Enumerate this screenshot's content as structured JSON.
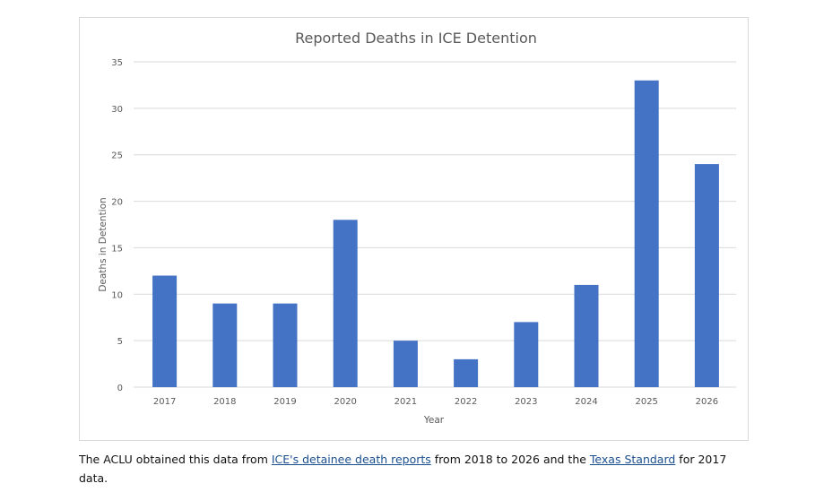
{
  "chart_data": {
    "type": "bar",
    "title": "Reported Deaths in ICE Detention",
    "xlabel": "Year",
    "ylabel": "Deaths in Detention",
    "categories": [
      "2017",
      "2018",
      "2019",
      "2020",
      "2021",
      "2022",
      "2023",
      "2024",
      "2025",
      "2026"
    ],
    "values": [
      12,
      9,
      9,
      18,
      5,
      3,
      7,
      11,
      33,
      24
    ],
    "ylim": [
      0,
      35
    ],
    "yticks": [
      "0",
      "5",
      "10",
      "15",
      "20",
      "25",
      "30",
      "35"
    ],
    "grid": true,
    "legend": "none",
    "bar_color": "#4472c4"
  },
  "caption": {
    "part1": "The ACLU obtained this data from ",
    "link1": "ICE's detainee death reports",
    "part2": " from 2018 to 2026 and the ",
    "link2": "Texas Standard",
    "part3": " for 2017 data."
  }
}
